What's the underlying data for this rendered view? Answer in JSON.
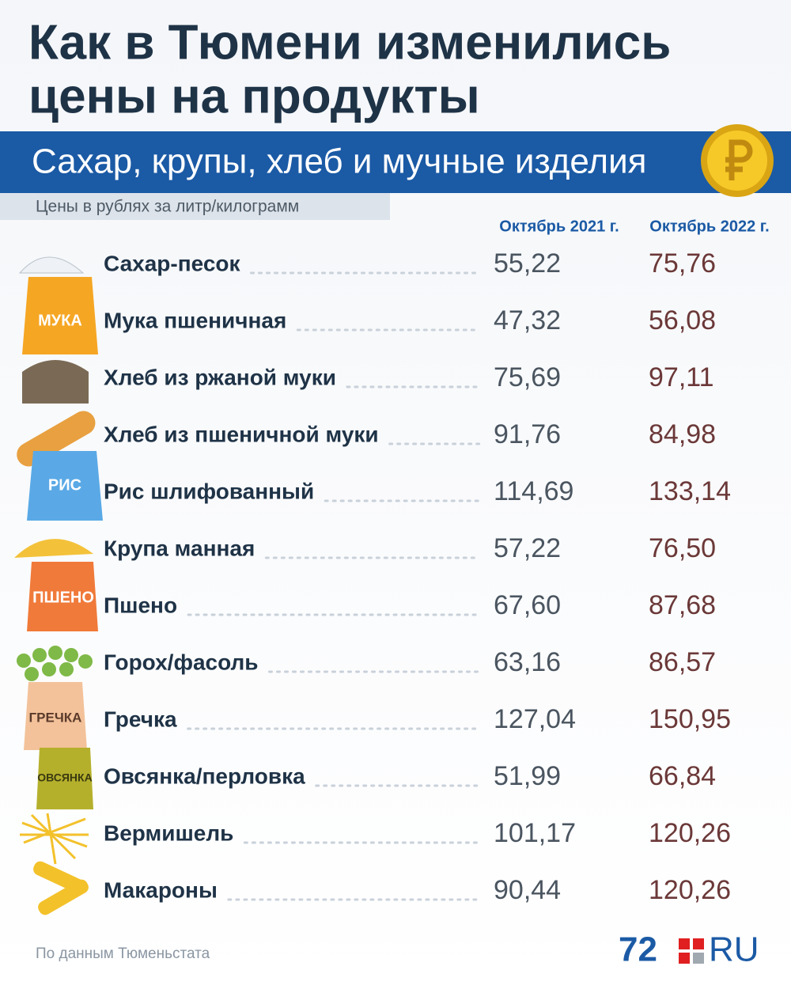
{
  "header": {
    "title": [
      "Как в Тюмени изменились",
      "цены на продукты"
    ],
    "subtitle": "Сахар, крупы, хлеб и мучные изделия",
    "note": "Цены в рублях за литр/килограмм"
  },
  "table": {
    "columns": [
      "Октябрь 2021 г.",
      "Октябрь 2022 г."
    ],
    "rows": [
      [
        "Сахар-песок",
        "55,22",
        "75,76"
      ],
      [
        "Мука пшеничная",
        "47,32",
        "56,08"
      ],
      [
        "Хлеб из ржаной муки",
        "75,69",
        "97,11"
      ],
      [
        "Хлеб из пшеничной муки",
        "91,76",
        "84,98"
      ],
      [
        "Рис шлифованный",
        "114,69",
        "133,14"
      ],
      [
        "Крупа манная",
        "57,22",
        "76,50"
      ],
      [
        "Пшено",
        "67,60",
        "87,68"
      ],
      [
        "Горох/фасоль",
        "63,16",
        "86,57"
      ],
      [
        "Гречка",
        "127,04",
        "150,95"
      ],
      [
        "Овсянка/перловка",
        "51,99",
        "66,84"
      ],
      [
        "Вермишель",
        "101,17",
        "120,26"
      ],
      [
        "Макароны",
        "90,44",
        "120,26"
      ]
    ]
  },
  "icons": {
    "flour": "МУКА",
    "rice": "РИС",
    "millet": "ПШЕНО",
    "buckwheat": "ГРЕЧКА",
    "oats": "ОВСЯНКА"
  },
  "footer": {
    "source": "По данным Тюменьстата",
    "logo_number": "72",
    "logo_text": "RU"
  }
}
